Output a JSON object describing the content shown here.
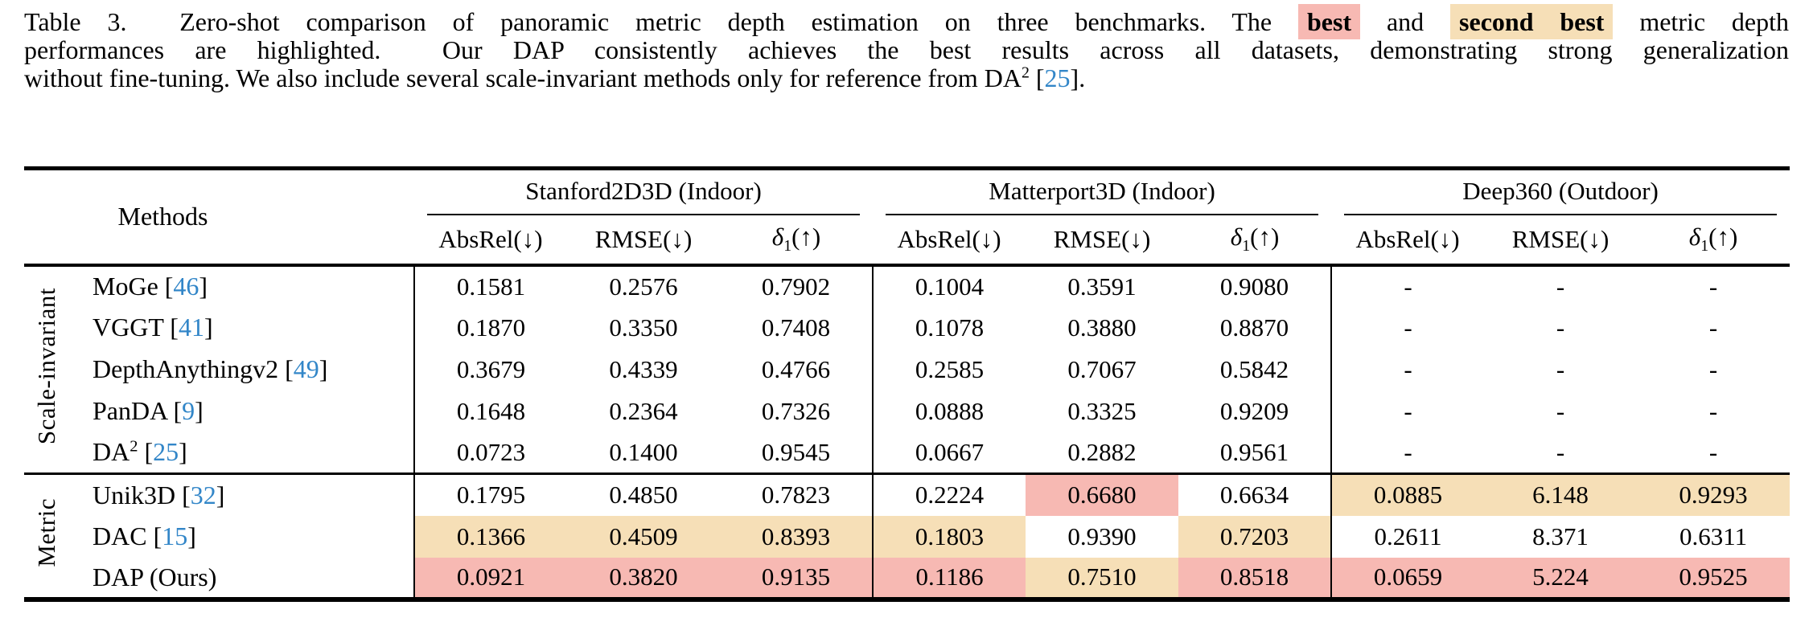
{
  "caption": {
    "lines": [
      {
        "justify": true,
        "segments": [
          {
            "text": "Table 3.  Zero-shot comparison of panoramic metric depth estimation on three benchmarks. The ",
            "style": "plain"
          },
          {
            "text": "best",
            "style": "best"
          },
          {
            "text": " and ",
            "style": "plain"
          },
          {
            "text": "second best",
            "style": "second"
          },
          {
            "text": " metric depth",
            "style": "plain"
          }
        ]
      },
      {
        "justify": true,
        "segments": [
          {
            "text": "performances are highlighted.  Our DAP consistently achieves the best results across all datasets, demonstrating strong generalization",
            "style": "plain"
          }
        ]
      },
      {
        "justify": false,
        "segments": [
          {
            "text": "without fine-tuning. We also include several scale-invariant methods only for reference from DA",
            "style": "plain"
          },
          {
            "text": "2",
            "style": "sup"
          },
          {
            "text": " [",
            "style": "plain"
          },
          {
            "text": "25",
            "style": "ref"
          },
          {
            "text": "].",
            "style": "plain"
          }
        ]
      }
    ]
  },
  "table": {
    "methods_header": "Methods",
    "groups": [
      {
        "name": "Stanford2D3D (Indoor)"
      },
      {
        "name": "Matterport3D (Indoor)"
      },
      {
        "name": "Deep360 (Outdoor)"
      }
    ],
    "metrics": [
      {
        "name": "AbsRel",
        "italic": false,
        "sub": null,
        "arrow": "↓"
      },
      {
        "name": "RMSE",
        "italic": false,
        "sub": null,
        "arrow": "↓"
      },
      {
        "name": "δ",
        "italic": true,
        "sub": "1",
        "arrow": "↑"
      }
    ],
    "highlight_colors": {
      "best": "#f7b9b3",
      "second": "#f6dfb7"
    },
    "citation_color": "#3286c8",
    "sections": [
      {
        "label": "Scale-invariant",
        "rows": [
          {
            "method": {
              "name": "MoGe",
              "sup": null,
              "ref": "46"
            },
            "values": [
              "0.1581",
              "0.2576",
              "0.7902",
              "0.1004",
              "0.3591",
              "0.9080",
              "-",
              "-",
              "-"
            ],
            "highlights": [
              null,
              null,
              null,
              null,
              null,
              null,
              null,
              null,
              null
            ]
          },
          {
            "method": {
              "name": "VGGT",
              "sup": null,
              "ref": "41"
            },
            "values": [
              "0.1870",
              "0.3350",
              "0.7408",
              "0.1078",
              "0.3880",
              "0.8870",
              "-",
              "-",
              "-"
            ],
            "highlights": [
              null,
              null,
              null,
              null,
              null,
              null,
              null,
              null,
              null
            ]
          },
          {
            "method": {
              "name": "DepthAnythingv2",
              "sup": null,
              "ref": "49"
            },
            "values": [
              "0.3679",
              "0.4339",
              "0.4766",
              "0.2585",
              "0.7067",
              "0.5842",
              "-",
              "-",
              "-"
            ],
            "highlights": [
              null,
              null,
              null,
              null,
              null,
              null,
              null,
              null,
              null
            ]
          },
          {
            "method": {
              "name": "PanDA",
              "sup": null,
              "ref": "9"
            },
            "values": [
              "0.1648",
              "0.2364",
              "0.7326",
              "0.0888",
              "0.3325",
              "0.9209",
              "-",
              "-",
              "-"
            ],
            "highlights": [
              null,
              null,
              null,
              null,
              null,
              null,
              null,
              null,
              null
            ]
          },
          {
            "method": {
              "name": "DA",
              "sup": "2",
              "ref": "25"
            },
            "values": [
              "0.0723",
              "0.1400",
              "0.9545",
              "0.0667",
              "0.2882",
              "0.9561",
              "-",
              "-",
              "-"
            ],
            "highlights": [
              null,
              null,
              null,
              null,
              null,
              null,
              null,
              null,
              null
            ]
          }
        ]
      },
      {
        "label": "Metric",
        "rows": [
          {
            "method": {
              "name": "Unik3D",
              "sup": null,
              "ref": "32"
            },
            "values": [
              "0.1795",
              "0.4850",
              "0.7823",
              "0.2224",
              "0.6680",
              "0.6634",
              "0.0885",
              "6.148",
              "0.9293"
            ],
            "highlights": [
              null,
              null,
              null,
              null,
              "best",
              null,
              "second",
              "second",
              "second"
            ]
          },
          {
            "method": {
              "name": "DAC",
              "sup": null,
              "ref": "15"
            },
            "values": [
              "0.1366",
              "0.4509",
              "0.8393",
              "0.1803",
              "0.9390",
              "0.7203",
              "0.2611",
              "8.371",
              "0.6311"
            ],
            "highlights": [
              "second",
              "second",
              "second",
              "second",
              null,
              "second",
              null,
              null,
              null
            ]
          },
          {
            "method": {
              "name": "DAP (Ours)",
              "sup": null,
              "ref": null
            },
            "values": [
              "0.0921",
              "0.3820",
              "0.9135",
              "0.1186",
              "0.7510",
              "0.8518",
              "0.0659",
              "5.224",
              "0.9525"
            ],
            "highlights": [
              "best",
              "best",
              "best",
              "best",
              "second",
              "best",
              "best",
              "best",
              "best"
            ]
          }
        ]
      }
    ]
  }
}
